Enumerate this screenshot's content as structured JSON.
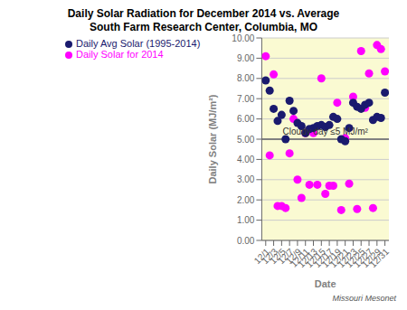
{
  "chart_data": {
    "type": "scatter",
    "title": "Daily Solar Radiation for December 2014 vs. Average",
    "subtitle": "South Farm Research Center, Columbia, MO",
    "x_label": "Date",
    "y_label": "Daily Solar (MJ/m²)",
    "x": [
      1,
      2,
      3,
      4,
      5,
      6,
      7,
      8,
      9,
      10,
      11,
      12,
      13,
      14,
      15,
      16,
      17,
      18,
      19,
      20,
      21,
      22,
      23,
      24,
      25,
      26,
      27,
      28,
      29,
      30,
      31
    ],
    "series": [
      {
        "name": "Daily Solar for 2014",
        "color": "#FF00FF",
        "marker": "circle",
        "values": [
          9.1,
          4.2,
          8.2,
          1.7,
          1.7,
          1.6,
          4.3,
          6.0,
          3.0,
          2.1,
          5.3,
          2.75,
          5.3,
          2.75,
          8.0,
          2.3,
          2.7,
          2.7,
          6.8,
          1.5,
          5.05,
          2.8,
          7.1,
          1.55,
          9.35,
          6.55,
          8.25,
          1.6,
          9.65,
          9.45,
          8.35
        ]
      },
      {
        "name": "Daily Avg Solar (1995-2014)",
        "color": "#1a1a6e",
        "marker": "circle",
        "values": [
          7.9,
          7.4,
          6.5,
          5.9,
          6.2,
          5.0,
          6.9,
          6.4,
          5.8,
          5.65,
          5.3,
          5.5,
          5.55,
          5.65,
          5.7,
          5.6,
          5.7,
          6.1,
          6.0,
          5.0,
          4.9,
          5.55,
          6.8,
          6.6,
          6.5,
          6.7,
          6.8,
          5.95,
          6.1,
          6.05,
          7.3
        ]
      }
    ],
    "xlim": [
      0,
      32
    ],
    "xticks": [
      {
        "value": 1,
        "label": "12/1"
      },
      {
        "value": 3,
        "label": "12/3"
      },
      {
        "value": 5,
        "label": "12/5"
      },
      {
        "value": 7,
        "label": "12/7"
      },
      {
        "value": 9,
        "label": "12/9"
      },
      {
        "value": 11,
        "label": "12/11"
      },
      {
        "value": 13,
        "label": "12/13"
      },
      {
        "value": 15,
        "label": "12/15"
      },
      {
        "value": 17,
        "label": "12/17"
      },
      {
        "value": 19,
        "label": "12/19"
      },
      {
        "value": 21,
        "label": "12/21"
      },
      {
        "value": 23,
        "label": "12/23"
      },
      {
        "value": 25,
        "label": "12/25"
      },
      {
        "value": 27,
        "label": "12/27"
      },
      {
        "value": 29,
        "label": "12/29"
      },
      {
        "value": 31,
        "label": "12/31"
      }
    ],
    "ylim": [
      0,
      10
    ],
    "yticks": [
      {
        "value": 0,
        "label": "0.00"
      },
      {
        "value": 1,
        "label": "1.00"
      },
      {
        "value": 2,
        "label": "2.00"
      },
      {
        "value": 3,
        "label": "3.00"
      },
      {
        "value": 4,
        "label": "4.00"
      },
      {
        "value": 5,
        "label": "5.00"
      },
      {
        "value": 6,
        "label": "6.00"
      },
      {
        "value": 7,
        "label": "7.00"
      },
      {
        "value": 8,
        "label": "8.00"
      },
      {
        "value": 9,
        "label": "9.00"
      },
      {
        "value": 10,
        "label": "10.00"
      }
    ],
    "annotations": [
      {
        "text": "Cloudy day ≤5 MJ/m²",
        "y": 5,
        "color": "#808080"
      }
    ],
    "watermark": "Missouri Mesonet",
    "background": "#FAFAD2",
    "grid": "y",
    "legend": "top"
  }
}
